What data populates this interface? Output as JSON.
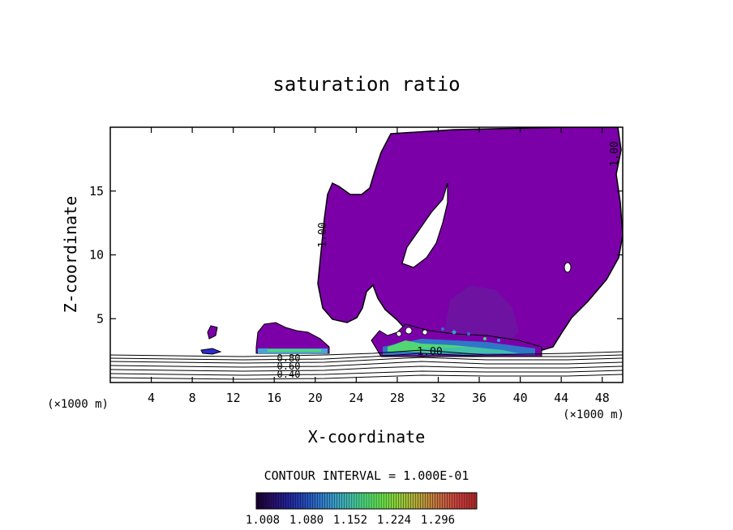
{
  "chart_data": {
    "type": "contour",
    "title": "saturation ratio",
    "xlabel": "X-coordinate",
    "ylabel": "Z-coordinate",
    "x_unit": "(×1000 m)",
    "y_unit": "(×1000 m)",
    "xlim": [
      0,
      50
    ],
    "ylim": [
      0,
      20
    ],
    "x_ticks": [
      4,
      8,
      12,
      16,
      20,
      24,
      28,
      32,
      36,
      40,
      44,
      48
    ],
    "y_ticks": [
      5,
      10,
      15
    ],
    "contour_interval_text": "CONTOUR INTERVAL = 1.000E-01",
    "contour_labels": [
      "1.00",
      "1.00",
      "1.00",
      "0.80",
      "0.60",
      "0.40"
    ],
    "colorbar": {
      "tick_labels": [
        "1.008",
        "1.080",
        "1.152",
        "1.224",
        "1.296"
      ],
      "colors": [
        "#1a0033",
        "#26106a",
        "#23239a",
        "#2449b8",
        "#2f76c9",
        "#3aa0c8",
        "#43c0a8",
        "#4fd874",
        "#68df4a",
        "#8fd23a",
        "#b0b23a",
        "#c08a3c",
        "#c86040",
        "#c83c3c",
        "#b02a2a"
      ]
    },
    "fill_color": "#7b00a8"
  }
}
